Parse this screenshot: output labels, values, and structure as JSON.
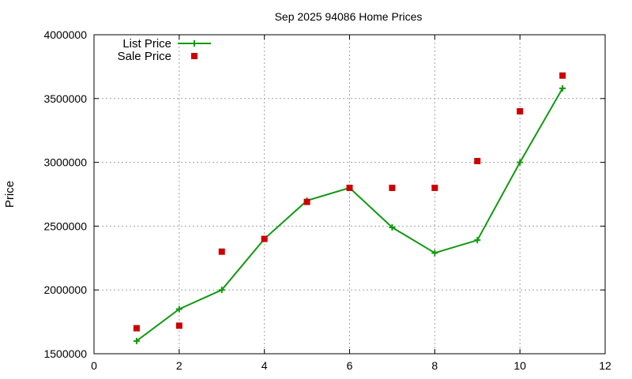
{
  "chart_data": {
    "type": "line",
    "title": "Sep 2025 94086 Home Prices",
    "xlabel": "",
    "ylabel": "Price",
    "xlim": [
      0,
      12
    ],
    "ylim": [
      1500000,
      4000000
    ],
    "xticks": [
      0,
      2,
      4,
      6,
      8,
      10,
      12
    ],
    "yticks": [
      1500000,
      2000000,
      2500000,
      3000000,
      3500000,
      4000000
    ],
    "grid": true,
    "legend_position": "top-left",
    "series": [
      {
        "name": "List Price",
        "style": "line-with-plus-markers",
        "color": "#119911",
        "x": [
          1,
          2,
          3,
          4,
          5,
          6,
          7,
          8,
          9,
          10,
          11
        ],
        "values": [
          1600000,
          1850000,
          2000000,
          2400000,
          2700000,
          2800000,
          2490000,
          2290000,
          2390000,
          3000000,
          3580000
        ]
      },
      {
        "name": "Sale Price",
        "style": "square-markers",
        "color": "#cc0000",
        "x": [
          1,
          2,
          3,
          4,
          5,
          6,
          7,
          8,
          9,
          10,
          11
        ],
        "values": [
          1700000,
          1720000,
          2300000,
          2400000,
          2690000,
          2800000,
          2800000,
          2800000,
          3010000,
          3400000,
          3680000
        ]
      }
    ]
  }
}
